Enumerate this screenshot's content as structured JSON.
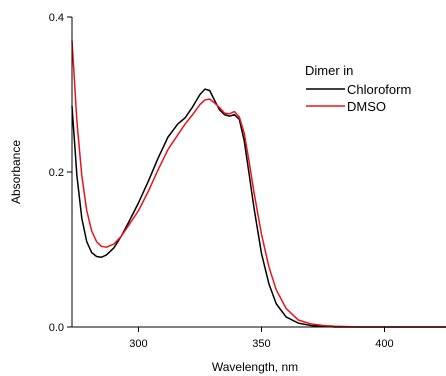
{
  "chart_data": {
    "type": "line",
    "title": "",
    "xlabel": "Wavelength, nm",
    "ylabel": "Absorbance",
    "xlim": [
      273,
      425
    ],
    "ylim": [
      0.0,
      0.4
    ],
    "x_ticks": [
      300,
      350,
      400
    ],
    "x_tick_labels": [
      "300",
      "350",
      "400"
    ],
    "y_ticks": [
      0.0,
      0.2,
      0.4
    ],
    "y_tick_labels": [
      "0.0",
      "0.2",
      "0.4"
    ],
    "grid": false,
    "legend": {
      "title": "Dimer in",
      "position": "top-right",
      "entries": [
        {
          "label": "Chloroform",
          "color": "#000000"
        },
        {
          "label": "DMSO",
          "color": "#e8141c"
        }
      ]
    },
    "series": [
      {
        "name": "Chloroform",
        "color": "#000000",
        "x": [
          273,
          275,
          277,
          279,
          281,
          283,
          285,
          287,
          290,
          293,
          296,
          300,
          304,
          308,
          312,
          316,
          319,
          322,
          325,
          327,
          329,
          331,
          333,
          335,
          337,
          339,
          341,
          343,
          345,
          347,
          350,
          353,
          356,
          360,
          365,
          370,
          375,
          380,
          390,
          400,
          410,
          425
        ],
        "y": [
          0.285,
          0.195,
          0.14,
          0.11,
          0.096,
          0.091,
          0.09,
          0.093,
          0.102,
          0.117,
          0.135,
          0.16,
          0.188,
          0.218,
          0.245,
          0.262,
          0.27,
          0.284,
          0.3,
          0.307,
          0.305,
          0.292,
          0.28,
          0.274,
          0.272,
          0.274,
          0.268,
          0.24,
          0.197,
          0.153,
          0.095,
          0.056,
          0.03,
          0.013,
          0.005,
          0.002,
          0.001,
          0.0,
          0.0,
          0.0,
          0.0,
          0.0
        ]
      },
      {
        "name": "DMSO",
        "color": "#e8141c",
        "x": [
          273,
          275,
          277,
          279,
          281,
          283,
          285,
          287,
          290,
          293,
          296,
          300,
          304,
          308,
          312,
          316,
          319,
          322,
          325,
          327,
          329,
          331,
          333,
          335,
          337,
          339,
          341,
          343,
          345,
          347,
          350,
          353,
          356,
          360,
          365,
          370,
          375,
          380,
          390,
          400,
          410,
          425
        ],
        "y": [
          0.37,
          0.265,
          0.195,
          0.15,
          0.124,
          0.11,
          0.104,
          0.103,
          0.107,
          0.117,
          0.131,
          0.15,
          0.175,
          0.203,
          0.229,
          0.248,
          0.262,
          0.274,
          0.287,
          0.293,
          0.294,
          0.289,
          0.283,
          0.276,
          0.275,
          0.278,
          0.271,
          0.25,
          0.213,
          0.173,
          0.12,
          0.078,
          0.048,
          0.024,
          0.009,
          0.004,
          0.002,
          0.001,
          0.0,
          0.0,
          0.0,
          0.0
        ]
      }
    ]
  }
}
